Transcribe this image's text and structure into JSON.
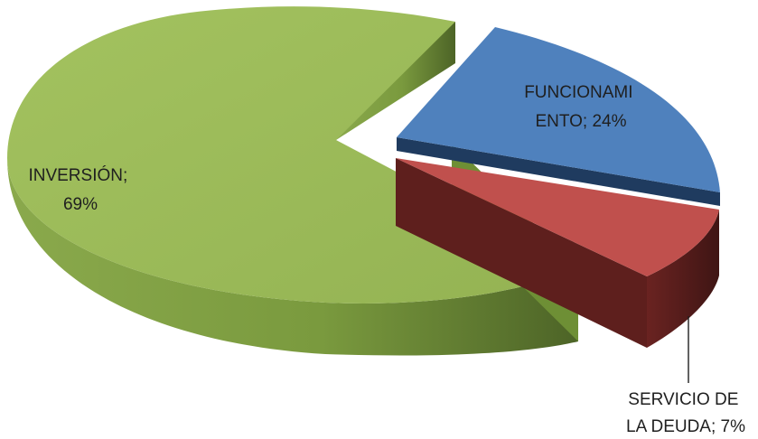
{
  "chart_data": {
    "type": "pie",
    "style": "3d-exploded",
    "slices": [
      {
        "name": "INVERSIÓN",
        "value": 69,
        "label_lines": [
          "INVERSIÓN;",
          "69%"
        ],
        "color": "#9bbb59"
      },
      {
        "name": "FUNCIONAMIENTO",
        "value": 24,
        "label_lines": [
          "FUNCIONAMI",
          "ENTO; 24%"
        ],
        "color": "#4f81bd"
      },
      {
        "name": "SERVICIO DE LA DEUDA",
        "value": 7,
        "label_lines": [
          "SERVICIO DE",
          "LA DEUDA; 7%"
        ],
        "color": "#c0504d"
      }
    ],
    "legend": "none"
  }
}
